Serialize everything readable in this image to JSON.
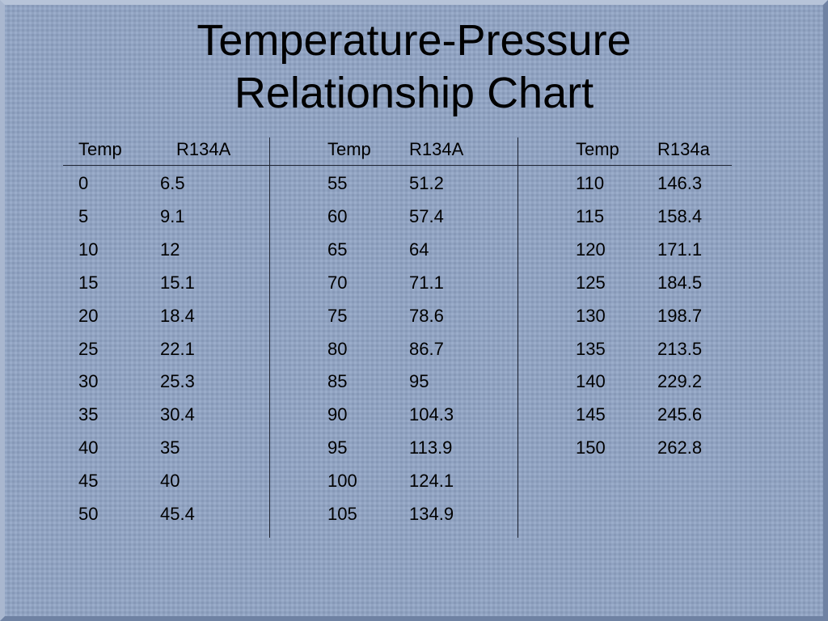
{
  "title": [
    "Temperature-Pressure",
    "Relationship Chart"
  ],
  "table": {
    "groups": [
      {
        "headers": [
          "Temp",
          "R134A"
        ],
        "rows": [
          [
            "0",
            "6.5"
          ],
          [
            "5",
            "9.1"
          ],
          [
            "10",
            "12"
          ],
          [
            "15",
            "15.1"
          ],
          [
            "20",
            "18.4"
          ],
          [
            "25",
            "22.1"
          ],
          [
            "30",
            "25.3"
          ],
          [
            "35",
            "30.4"
          ],
          [
            "40",
            "35"
          ],
          [
            "45",
            "40"
          ],
          [
            "50",
            "45.4"
          ]
        ]
      },
      {
        "headers": [
          "Temp",
          "R134A"
        ],
        "rows": [
          [
            "55",
            "51.2"
          ],
          [
            "60",
            "57.4"
          ],
          [
            "65",
            "64"
          ],
          [
            "70",
            "71.1"
          ],
          [
            "75",
            "78.6"
          ],
          [
            "80",
            "86.7"
          ],
          [
            "85",
            "95"
          ],
          [
            "90",
            "104.3"
          ],
          [
            "95",
            "113.9"
          ],
          [
            "100",
            "124.1"
          ],
          [
            "105",
            "134.9"
          ]
        ]
      },
      {
        "headers": [
          "Temp",
          "R134a"
        ],
        "rows": [
          [
            "110",
            "146.3"
          ],
          [
            "115",
            "158.4"
          ],
          [
            "120",
            "171.1"
          ],
          [
            "125",
            "184.5"
          ],
          [
            "130",
            "198.7"
          ],
          [
            "135",
            "213.5"
          ],
          [
            "140",
            "229.2"
          ],
          [
            "145",
            "245.6"
          ],
          [
            "150",
            "262.8"
          ]
        ]
      }
    ]
  }
}
